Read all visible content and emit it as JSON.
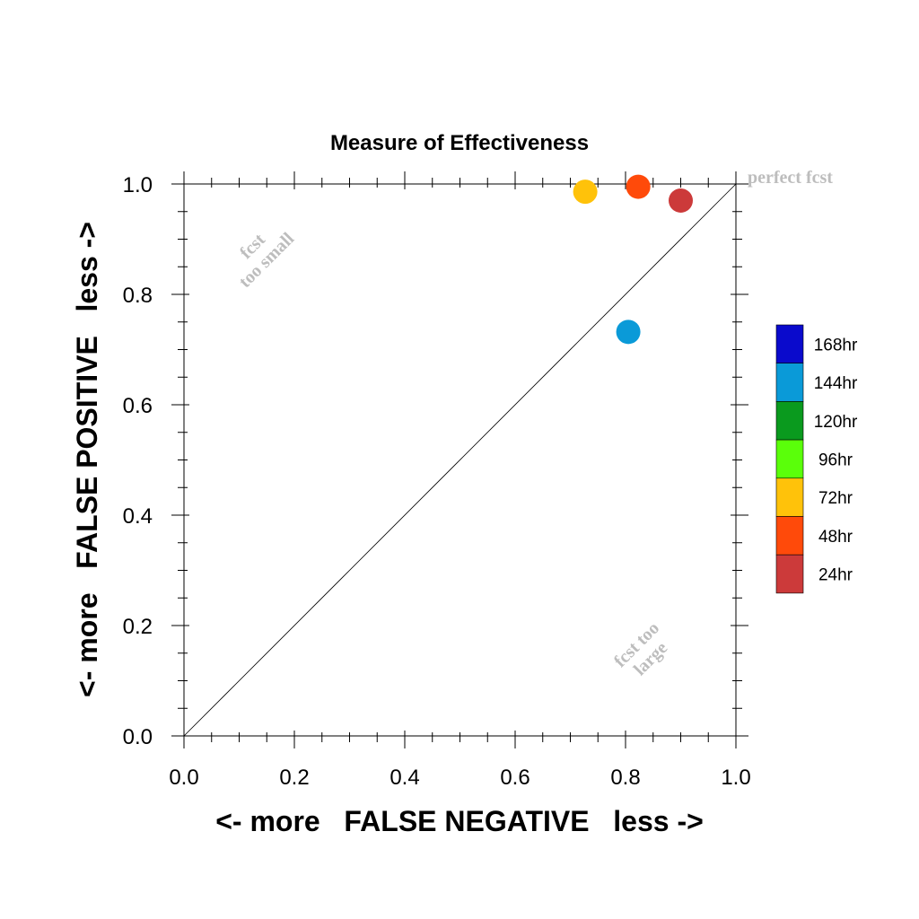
{
  "chart_data": {
    "type": "scatter",
    "title": "Measure of Effectiveness",
    "xlabel": "<- more   FALSE NEGATIVE   less ->",
    "ylabel": "<- more   FALSE POSITIVE   less ->",
    "xlim": [
      0,
      1
    ],
    "ylim": [
      0,
      1
    ],
    "x_ticks": [
      "0.0",
      "0.2",
      "0.4",
      "0.6",
      "0.8",
      "1.0"
    ],
    "y_ticks": [
      "0.0",
      "0.2",
      "0.4",
      "0.6",
      "0.8",
      "1.0"
    ],
    "grid": false,
    "reference_line": {
      "from": [
        0,
        0
      ],
      "to": [
        1,
        1
      ]
    },
    "annotations": {
      "perfect": "perfect fcst",
      "small_line1": "fcst",
      "small_line2": "too small",
      "large_line1": "fcst too",
      "large_line2": "large"
    },
    "legend": {
      "placement": "right",
      "entries": [
        {
          "label": "168hr",
          "color": "#0a0acc"
        },
        {
          "label": "144hr",
          "color": "#0a9ad8"
        },
        {
          "label": "120hr",
          "color": "#0a9a1e"
        },
        {
          "label": "96hr",
          "color": "#5aff0a"
        },
        {
          "label": "72hr",
          "color": "#ffc20a"
        },
        {
          "label": "48hr",
          "color": "#ff4a0a"
        },
        {
          "label": "24hr",
          "color": "#cc3a3a"
        }
      ]
    },
    "series": [
      {
        "name": "24hr",
        "color": "#cc3a3a",
        "x": 0.9,
        "y": 0.97
      },
      {
        "name": "48hr",
        "color": "#ff4a0a",
        "x": 0.823,
        "y": 0.995
      },
      {
        "name": "72hr",
        "color": "#ffc20a",
        "x": 0.727,
        "y": 0.986
      },
      {
        "name": "144hr",
        "color": "#0a9ad8",
        "x": 0.805,
        "y": 0.732
      }
    ]
  }
}
